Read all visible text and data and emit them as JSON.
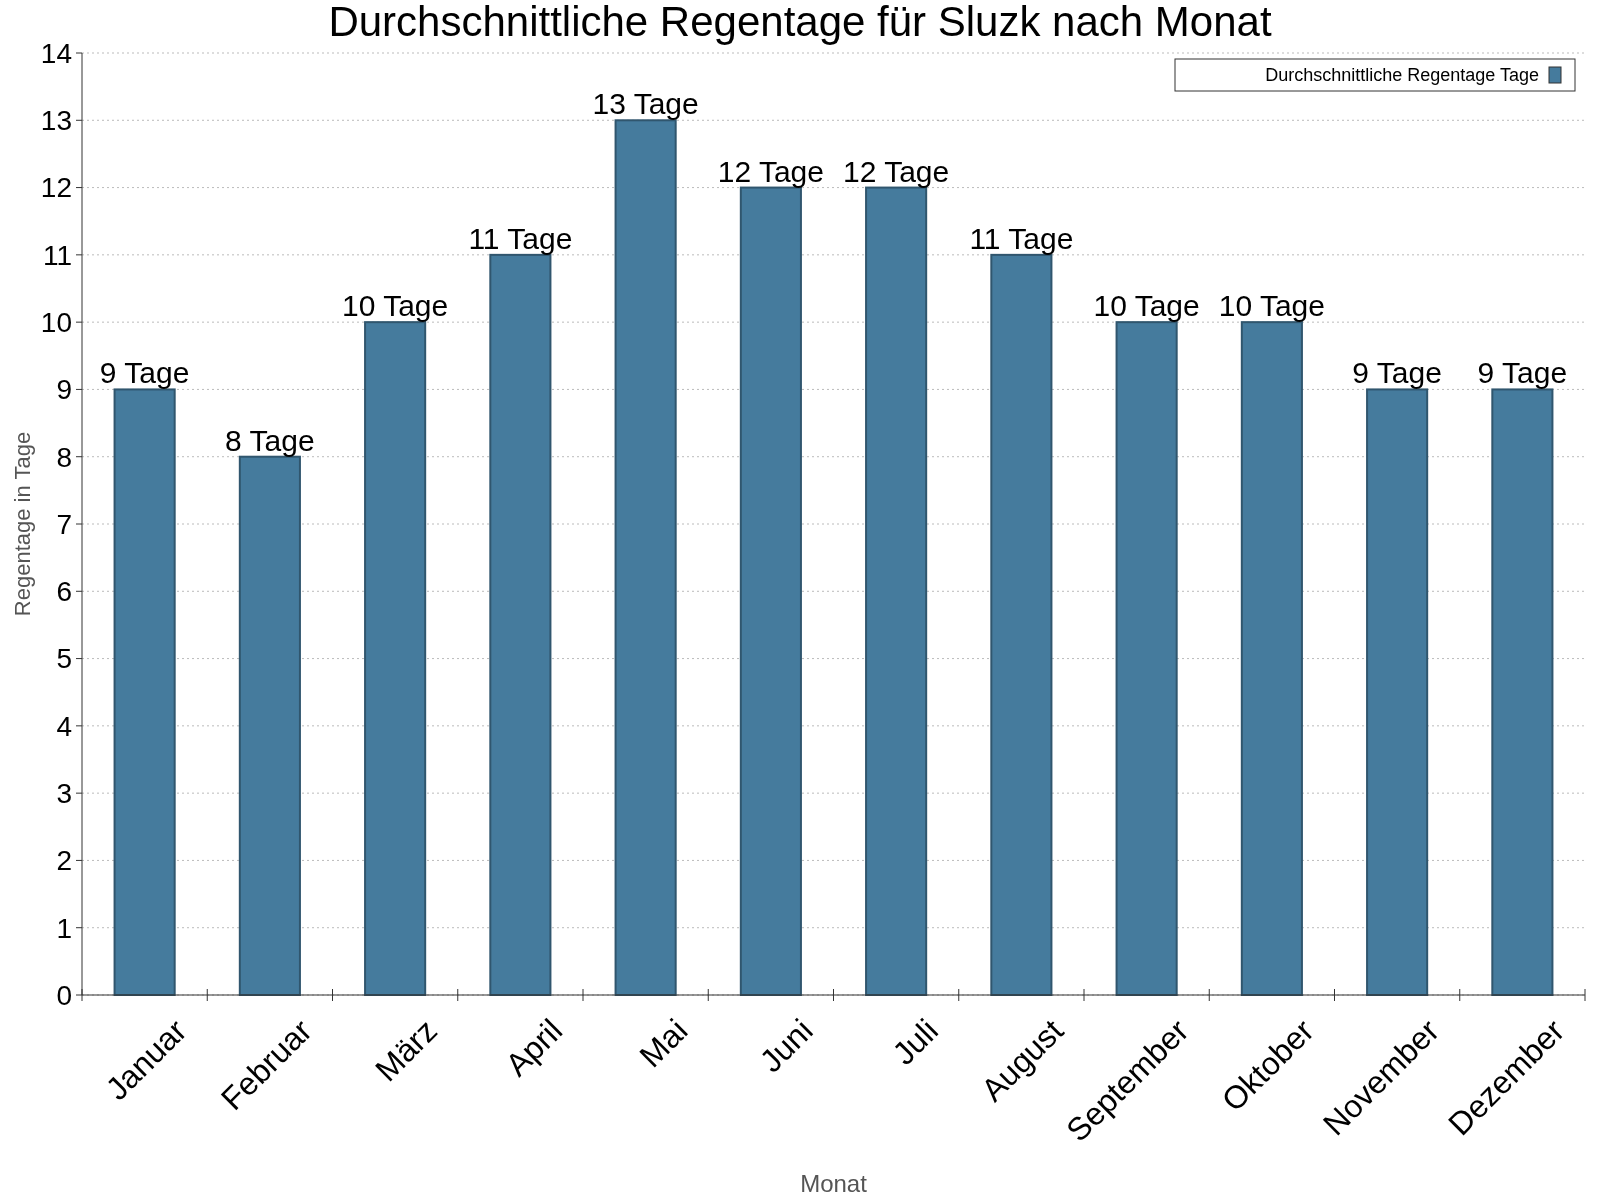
{
  "chart_data": {
    "type": "bar",
    "title": "Durchschnittliche Regentage für Sluzk nach Monat",
    "xlabel": "Monat",
    "ylabel": "Regentage in Tage",
    "categories": [
      "Januar",
      "Februar",
      "März",
      "April",
      "Mai",
      "Juni",
      "Juli",
      "August",
      "September",
      "Oktober",
      "November",
      "Dezember"
    ],
    "series": [
      {
        "name": "Durchschnittliche Regentage Tage",
        "color": "#457b9d",
        "values": [
          9,
          8,
          10,
          11,
          13,
          12,
          12,
          11,
          10,
          10,
          9,
          9
        ],
        "value_labels": [
          "9 Tage",
          "8 Tage",
          "10 Tage",
          "11 Tage",
          "13 Tage",
          "12 Tage",
          "12 Tage",
          "11 Tage",
          "10 Tage",
          "10 Tage",
          "9 Tage",
          "9 Tage"
        ]
      }
    ],
    "ylim": [
      0,
      14
    ],
    "yticks": [
      0,
      1,
      2,
      3,
      4,
      5,
      6,
      7,
      8,
      9,
      10,
      11,
      12,
      13,
      14
    ],
    "grid": "y",
    "legend": "top right"
  }
}
